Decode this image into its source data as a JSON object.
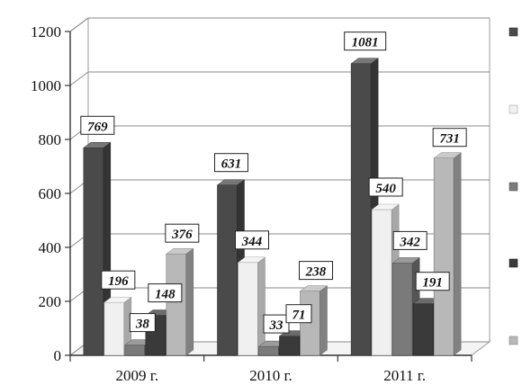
{
  "chart_data": {
    "type": "bar",
    "title": "",
    "xlabel": "",
    "ylabel": "",
    "ylim": [
      0,
      1200
    ],
    "yticks": [
      0,
      200,
      400,
      600,
      800,
      1000,
      1200
    ],
    "categories": [
      "2009 г.",
      "2010 г.",
      "2011 г."
    ],
    "grid": true,
    "legend": "right",
    "series": [
      {
        "color": "#4a4a4a",
        "values": [
          769,
          631,
          1081
        ]
      },
      {
        "color": "#f0f0f0",
        "values": [
          196,
          344,
          540
        ]
      },
      {
        "color": "#7a7a7a",
        "values": [
          38,
          33,
          342
        ]
      },
      {
        "color": "#3a3a3a",
        "values": [
          148,
          71,
          191
        ]
      },
      {
        "color": "#b8b8b8",
        "values": [
          376,
          238,
          731
        ]
      }
    ]
  }
}
